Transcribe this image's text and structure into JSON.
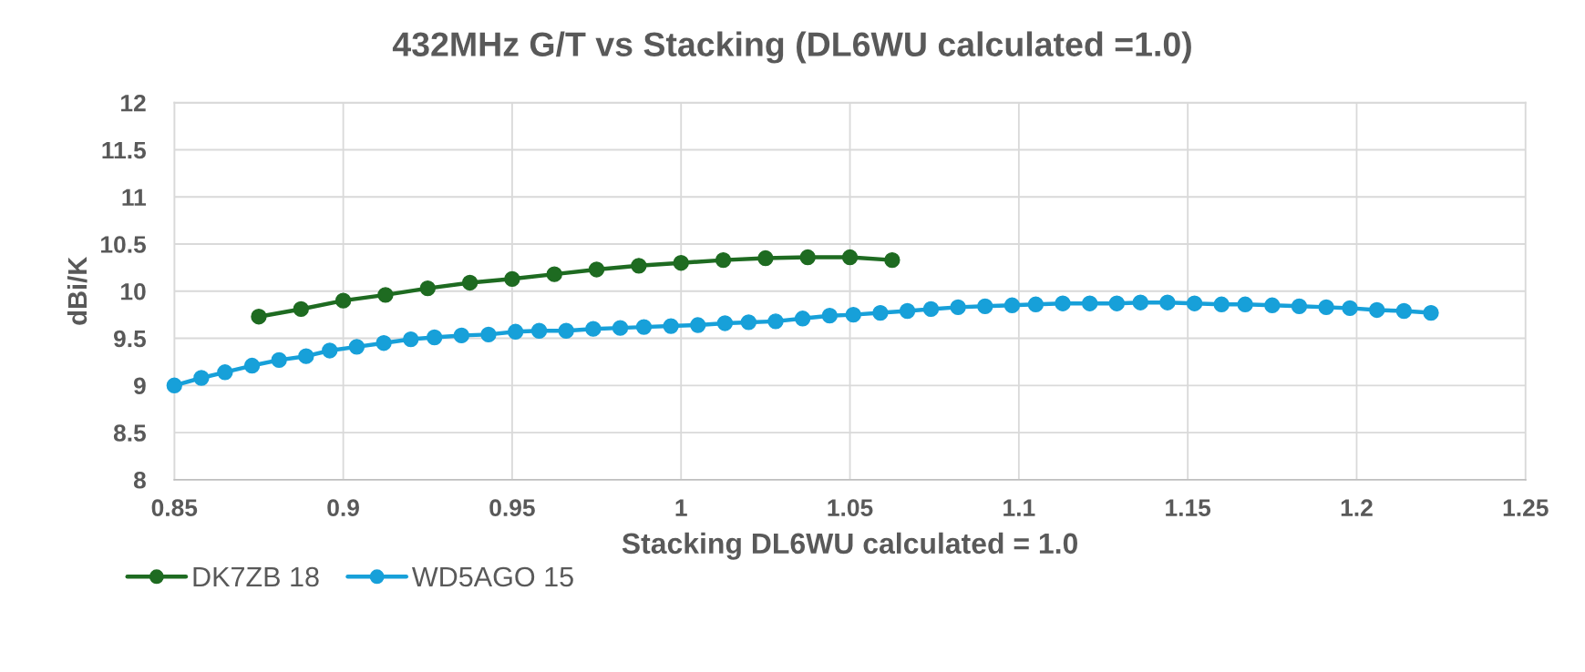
{
  "chart_data": {
    "type": "line",
    "title": "432MHz G/T vs Stacking (DL6WU calculated =1.0)",
    "xlabel": "Stacking DL6WU calculated = 1.0",
    "ylabel": "dBi/K",
    "xlim": [
      0.85,
      1.25
    ],
    "xticks": [
      0.85,
      0.9,
      0.95,
      1,
      1.05,
      1.1,
      1.15,
      1.2,
      1.25
    ],
    "ylim": [
      8,
      12
    ],
    "yticks": [
      8,
      8.5,
      9,
      9.5,
      10,
      10.5,
      11,
      11.5,
      12
    ],
    "grid": true,
    "legend": "bottom left",
    "marker": "circle",
    "line_style": "solid",
    "series": [
      {
        "name": "DK7ZB 18",
        "color": "#1e6b21",
        "x": [
          0.875,
          0.8875,
          0.9,
          0.9125,
          0.925,
          0.9375,
          0.95,
          0.9625,
          0.975,
          0.9875,
          1.0,
          1.0125,
          1.025,
          1.0375,
          1.05,
          1.0625
        ],
        "values": [
          9.73,
          9.81,
          9.9,
          9.96,
          10.03,
          10.09,
          10.13,
          10.18,
          10.23,
          10.27,
          10.3,
          10.33,
          10.35,
          10.36,
          10.36,
          10.33
        ]
      },
      {
        "name": "WD5AGO 15",
        "color": "#17a0d9",
        "x": [
          0.85,
          0.858,
          0.865,
          0.873,
          0.881,
          0.889,
          0.896,
          0.904,
          0.912,
          0.92,
          0.927,
          0.935,
          0.943,
          0.951,
          0.958,
          0.966,
          0.974,
          0.982,
          0.989,
          0.997,
          1.005,
          1.013,
          1.02,
          1.028,
          1.036,
          1.044,
          1.051,
          1.059,
          1.067,
          1.074,
          1.082,
          1.09,
          1.098,
          1.105,
          1.113,
          1.121,
          1.129,
          1.136,
          1.144,
          1.152,
          1.16,
          1.167,
          1.175,
          1.183,
          1.191,
          1.198,
          1.206,
          1.214,
          1.222
        ],
        "values": [
          9.0,
          9.08,
          9.14,
          9.21,
          9.27,
          9.31,
          9.37,
          9.41,
          9.45,
          9.49,
          9.51,
          9.53,
          9.54,
          9.57,
          9.58,
          9.58,
          9.6,
          9.61,
          9.62,
          9.63,
          9.64,
          9.66,
          9.67,
          9.68,
          9.71,
          9.74,
          9.75,
          9.77,
          9.79,
          9.81,
          9.83,
          9.84,
          9.85,
          9.86,
          9.87,
          9.87,
          9.87,
          9.88,
          9.88,
          9.87,
          9.86,
          9.86,
          9.85,
          9.84,
          9.83,
          9.82,
          9.8,
          9.79,
          9.77
        ]
      }
    ]
  }
}
